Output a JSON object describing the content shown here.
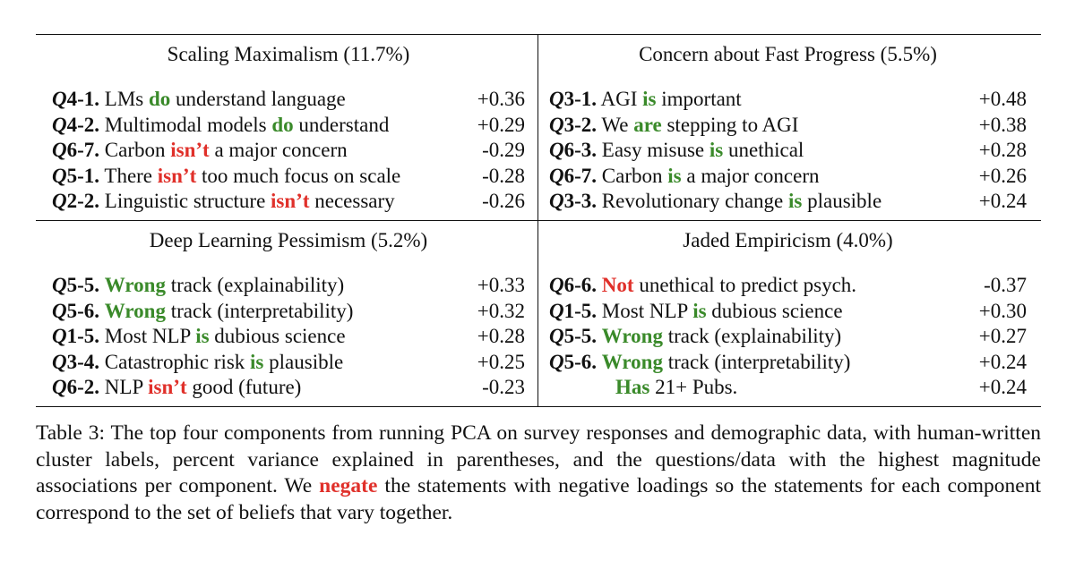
{
  "table": {
    "panels_top": [
      {
        "title": "Scaling Maximalism (11.7%)",
        "rows": [
          {
            "q": "Q",
            "id": "4-1.",
            "pre": "LMs ",
            "kw": "do",
            "kw_type": "pos",
            "post": " understand language",
            "value": "+0.36"
          },
          {
            "q": "Q",
            "id": "4-2.",
            "pre": "Multimodal models ",
            "kw": "do",
            "kw_type": "pos",
            "post": " understand",
            "value": "+0.29"
          },
          {
            "q": "Q",
            "id": "6-7.",
            "pre": "Carbon ",
            "kw": "isn’t",
            "kw_type": "neg",
            "post": " a major concern",
            "value": "-0.29"
          },
          {
            "q": "Q",
            "id": "5-1.",
            "pre": "There ",
            "kw": "isn’t",
            "kw_type": "neg",
            "post": " too much focus on scale",
            "value": "-0.28"
          },
          {
            "q": "Q",
            "id": "2-2.",
            "pre": "Linguistic structure ",
            "kw": "isn’t",
            "kw_type": "neg",
            "post": " necessary",
            "value": "-0.26"
          }
        ]
      },
      {
        "title": "Concern about Fast Progress (5.5%)",
        "rows": [
          {
            "q": "Q",
            "id": "3-1.",
            "pre": "AGI ",
            "kw": "is",
            "kw_type": "pos",
            "post": " important",
            "value": "+0.48"
          },
          {
            "q": "Q",
            "id": "3-2.",
            "pre": "We ",
            "kw": "are",
            "kw_type": "pos",
            "post": " stepping to AGI",
            "value": "+0.38"
          },
          {
            "q": "Q",
            "id": "6-3.",
            "pre": "Easy misuse ",
            "kw": "is",
            "kw_type": "pos",
            "post": " unethical",
            "value": "+0.28"
          },
          {
            "q": "Q",
            "id": "6-7.",
            "pre": "Carbon ",
            "kw": "is",
            "kw_type": "pos",
            "post": " a major concern",
            "value": "+0.26"
          },
          {
            "q": "Q",
            "id": "3-3.",
            "pre": "Revolutionary change ",
            "kw": "is",
            "kw_type": "pos",
            "post": " plausible",
            "value": "+0.24"
          }
        ]
      }
    ],
    "panels_bottom": [
      {
        "title": "Deep Learning Pessimism (5.2%)",
        "rows": [
          {
            "q": "Q",
            "id": "5-5.",
            "pre": "",
            "kw": "Wrong",
            "kw_type": "pos",
            "post": " track (explainability)",
            "value": "+0.33"
          },
          {
            "q": "Q",
            "id": "5-6.",
            "pre": "",
            "kw": "Wrong",
            "kw_type": "pos",
            "post": " track (interpretability)",
            "value": "+0.32"
          },
          {
            "q": "Q",
            "id": "1-5.",
            "pre": "Most NLP ",
            "kw": "is",
            "kw_type": "pos",
            "post": " dubious science",
            "value": "+0.28"
          },
          {
            "q": "Q",
            "id": "3-4.",
            "pre": "Catastrophic risk ",
            "kw": "is",
            "kw_type": "pos",
            "post": " plausible",
            "value": "+0.25"
          },
          {
            "q": "Q",
            "id": "6-2.",
            "pre": "NLP ",
            "kw": "isn’t",
            "kw_type": "neg",
            "post": " good (future)",
            "value": "-0.23"
          }
        ]
      },
      {
        "title": "Jaded Empiricism (4.0%)",
        "rows": [
          {
            "q": "Q",
            "id": "6-6.",
            "pre": "",
            "kw": "Not",
            "kw_type": "neg",
            "post": " unethical to predict psych.",
            "value": "-0.37"
          },
          {
            "q": "Q",
            "id": "1-5.",
            "pre": "Most NLP ",
            "kw": "is",
            "kw_type": "pos",
            "post": " dubious science",
            "value": "+0.30"
          },
          {
            "q": "Q",
            "id": "5-5.",
            "pre": "",
            "kw": "Wrong",
            "kw_type": "pos",
            "post": " track (explainability)",
            "value": "+0.27"
          },
          {
            "q": "Q",
            "id": "5-6.",
            "pre": "",
            "kw": "Wrong",
            "kw_type": "pos",
            "post": " track (interpretability)",
            "value": "+0.24"
          },
          {
            "q": "",
            "id": "",
            "pre": "",
            "kw": "Has",
            "kw_type": "pos",
            "post": " 21+ Pubs.",
            "value": "+0.24"
          }
        ]
      }
    ]
  },
  "caption": {
    "before": "Table 3: The top four components from running PCA on survey responses and demographic data, with human-written cluster labels, percent variance explained in parentheses, and the questions/data with the highest magnitude associations per component.  We ",
    "keyword": "negate",
    "after": " the statements with negative loadings so the statements for each component correspond to the set of beliefs that vary together."
  },
  "colors": {
    "positive_keyword": "#3a8a2a",
    "negative_keyword": "#e0302a"
  }
}
